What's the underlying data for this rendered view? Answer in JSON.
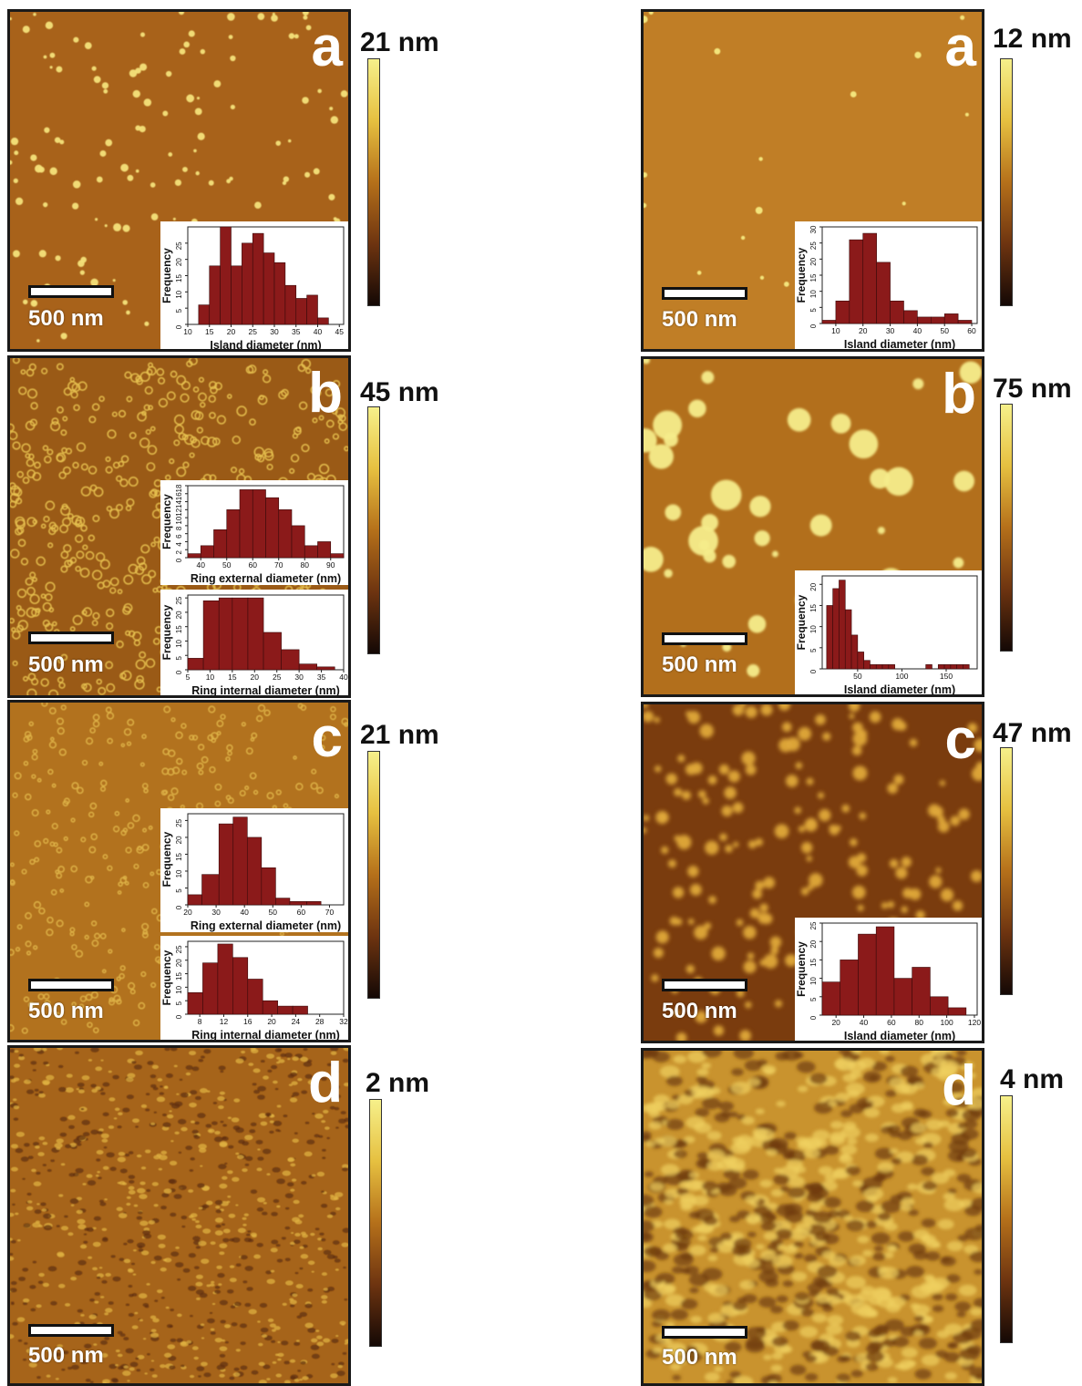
{
  "panels": [
    {
      "id": "la",
      "letter": "a",
      "scale_label": "500 nm",
      "colorbar_max": "21 nm",
      "texture": "islands"
    },
    {
      "id": "lb",
      "letter": "b",
      "scale_label": "500 nm",
      "colorbar_max": "45 nm",
      "texture": "rings"
    },
    {
      "id": "lc",
      "letter": "c",
      "scale_label": "500 nm",
      "colorbar_max": "21 nm",
      "texture": "rings-fine"
    },
    {
      "id": "ld",
      "letter": "d",
      "scale_label": "500 nm",
      "colorbar_max": "2 nm",
      "texture": "rough"
    },
    {
      "id": "ra",
      "letter": "a",
      "scale_label": "500 nm",
      "colorbar_max": "12 nm",
      "texture": "sparse"
    },
    {
      "id": "rb",
      "letter": "b",
      "scale_label": "500 nm",
      "colorbar_max": "75 nm",
      "texture": "big-islands"
    },
    {
      "id": "rc",
      "letter": "c",
      "scale_label": "500 nm",
      "colorbar_max": "47 nm",
      "texture": "blobs"
    },
    {
      "id": "rd",
      "letter": "d",
      "scale_label": "500 nm",
      "colorbar_max": "4 nm",
      "texture": "grainy"
    }
  ],
  "colors": {
    "bar": "#8b1a1a",
    "surface_mid": "#b8741c",
    "surface_high": "#f8ee7a",
    "surface_low": "#5a2a08"
  },
  "chart_data": [
    {
      "type": "bar",
      "id": "h-la",
      "xlabel": "Island diameter (nm)",
      "ylabel": "Frequency",
      "x_ticks": [
        10,
        15,
        20,
        25,
        30,
        35,
        40,
        45
      ],
      "y_ticks": [
        0,
        5,
        10,
        15,
        20,
        25
      ],
      "xlim": [
        10,
        46
      ],
      "ylim": [
        0,
        30
      ],
      "bins": [
        [
          12.5,
          15,
          6
        ],
        [
          15,
          17.5,
          18
        ],
        [
          17.5,
          20,
          30
        ],
        [
          20,
          22.5,
          18
        ],
        [
          22.5,
          25,
          25
        ],
        [
          25,
          27.5,
          28
        ],
        [
          27.5,
          30,
          22
        ],
        [
          30,
          32.5,
          19
        ],
        [
          32.5,
          35,
          12
        ],
        [
          35,
          37.5,
          8
        ],
        [
          37.5,
          40,
          9
        ],
        [
          40,
          42.5,
          2
        ]
      ]
    },
    {
      "type": "bar",
      "id": "h-lb1",
      "xlabel": "Ring external diameter (nm)",
      "ylabel": "Frequency",
      "x_ticks": [
        40,
        50,
        60,
        70,
        80,
        90
      ],
      "y_ticks": [
        0,
        2,
        4,
        6,
        8,
        10,
        12,
        14,
        16,
        18
      ],
      "xlim": [
        35,
        95
      ],
      "ylim": [
        0,
        18
      ],
      "bins": [
        [
          35,
          40,
          1
        ],
        [
          40,
          45,
          3
        ],
        [
          45,
          50,
          7
        ],
        [
          50,
          55,
          12
        ],
        [
          55,
          60,
          17
        ],
        [
          60,
          65,
          17
        ],
        [
          65,
          70,
          15
        ],
        [
          70,
          75,
          12
        ],
        [
          75,
          80,
          8
        ],
        [
          80,
          85,
          3
        ],
        [
          85,
          90,
          4
        ],
        [
          90,
          95,
          1
        ]
      ]
    },
    {
      "type": "bar",
      "id": "h-lb2",
      "xlabel": "Ring internal diameter (nm)",
      "ylabel": "Frequency",
      "x_ticks": [
        5,
        10,
        15,
        20,
        25,
        30,
        35,
        40
      ],
      "y_ticks": [
        0,
        5,
        10,
        15,
        20,
        25
      ],
      "xlim": [
        5,
        40
      ],
      "ylim": [
        0,
        26
      ],
      "bins": [
        [
          5,
          8.5,
          4
        ],
        [
          8.5,
          12,
          24
        ],
        [
          12,
          15,
          25
        ],
        [
          15,
          18.5,
          25
        ],
        [
          18.5,
          22,
          25
        ],
        [
          22,
          26,
          13
        ],
        [
          26,
          30,
          7
        ],
        [
          30,
          34,
          2
        ],
        [
          34,
          38,
          1
        ]
      ]
    },
    {
      "type": "bar",
      "id": "h-lc1",
      "xlabel": "Ring external diameter (nm)",
      "ylabel": "Frequency",
      "x_ticks": [
        20,
        30,
        40,
        50,
        60,
        70
      ],
      "y_ticks": [
        0,
        5,
        10,
        15,
        20,
        25
      ],
      "xlim": [
        20,
        75
      ],
      "ylim": [
        0,
        27
      ],
      "bins": [
        [
          20,
          25,
          3
        ],
        [
          25,
          31,
          9
        ],
        [
          31,
          36,
          24
        ],
        [
          36,
          41,
          26
        ],
        [
          41,
          46,
          20
        ],
        [
          46,
          51,
          11
        ],
        [
          51,
          56,
          2
        ],
        [
          56,
          62,
          1
        ],
        [
          62,
          67,
          1
        ]
      ]
    },
    {
      "type": "bar",
      "id": "h-lc2",
      "xlabel": "Ring internal diameter (nm)",
      "ylabel": "Frequency",
      "x_ticks": [
        8,
        12,
        16,
        20,
        24,
        28,
        32
      ],
      "y_ticks": [
        0,
        5,
        10,
        15,
        20,
        25
      ],
      "xlim": [
        6,
        32
      ],
      "ylim": [
        0,
        27
      ],
      "bins": [
        [
          6,
          8.5,
          8
        ],
        [
          8.5,
          11,
          19
        ],
        [
          11,
          13.5,
          26
        ],
        [
          13.5,
          16,
          21
        ],
        [
          16,
          18.5,
          13
        ],
        [
          18.5,
          21,
          5
        ],
        [
          21,
          23.5,
          3
        ],
        [
          23.5,
          26,
          3
        ]
      ]
    },
    {
      "type": "bar",
      "id": "h-ra",
      "xlabel": "Island diameter (nm)",
      "ylabel": "Frequency",
      "x_ticks": [
        10,
        20,
        30,
        40,
        50,
        60
      ],
      "y_ticks": [
        0,
        5,
        10,
        15,
        20,
        25,
        30
      ],
      "xlim": [
        5,
        62
      ],
      "ylim": [
        0,
        30
      ],
      "bins": [
        [
          5,
          10,
          1
        ],
        [
          10,
          15,
          7
        ],
        [
          15,
          20,
          26
        ],
        [
          20,
          25,
          28
        ],
        [
          25,
          30,
          19
        ],
        [
          30,
          35,
          7
        ],
        [
          35,
          40,
          4
        ],
        [
          40,
          45,
          2
        ],
        [
          45,
          50,
          2
        ],
        [
          50,
          55,
          3
        ],
        [
          55,
          60,
          1
        ]
      ]
    },
    {
      "type": "bar",
      "id": "h-rb",
      "xlabel": "Island diameter (nm)",
      "ylabel": "Frequency",
      "x_ticks": [
        50,
        100,
        150
      ],
      "y_ticks": [
        0,
        5,
        10,
        15,
        20
      ],
      "xlim": [
        10,
        185
      ],
      "ylim": [
        0,
        22
      ],
      "bins": [
        [
          15,
          22,
          15
        ],
        [
          22,
          29,
          19
        ],
        [
          29,
          36,
          21
        ],
        [
          36,
          43,
          14
        ],
        [
          43,
          50,
          8
        ],
        [
          50,
          57,
          4
        ],
        [
          57,
          64,
          2
        ],
        [
          64,
          71,
          1
        ],
        [
          71,
          78,
          1
        ],
        [
          78,
          85,
          1
        ],
        [
          85,
          92,
          1
        ],
        [
          92,
          99,
          0
        ],
        [
          99,
          106,
          0
        ],
        [
          106,
          113,
          0
        ],
        [
          113,
          120,
          0
        ],
        [
          120,
          127,
          0
        ],
        [
          127,
          134,
          1
        ],
        [
          134,
          141,
          0
        ],
        [
          141,
          148,
          1
        ],
        [
          148,
          155,
          1
        ],
        [
          155,
          162,
          1
        ],
        [
          162,
          169,
          1
        ],
        [
          169,
          176,
          1
        ]
      ]
    },
    {
      "type": "bar",
      "id": "h-rc",
      "xlabel": "Island diameter (nm)",
      "ylabel": "Frequency",
      "x_ticks": [
        20,
        40,
        60,
        80,
        100,
        120
      ],
      "y_ticks": [
        0,
        5,
        10,
        15,
        20,
        25
      ],
      "xlim": [
        10,
        122
      ],
      "ylim": [
        0,
        25
      ],
      "bins": [
        [
          10,
          23,
          9
        ],
        [
          23,
          36,
          15
        ],
        [
          36,
          49,
          22
        ],
        [
          49,
          62,
          24
        ],
        [
          62,
          75,
          10
        ],
        [
          75,
          88,
          13
        ],
        [
          88,
          101,
          5
        ],
        [
          101,
          114,
          2
        ]
      ]
    }
  ]
}
